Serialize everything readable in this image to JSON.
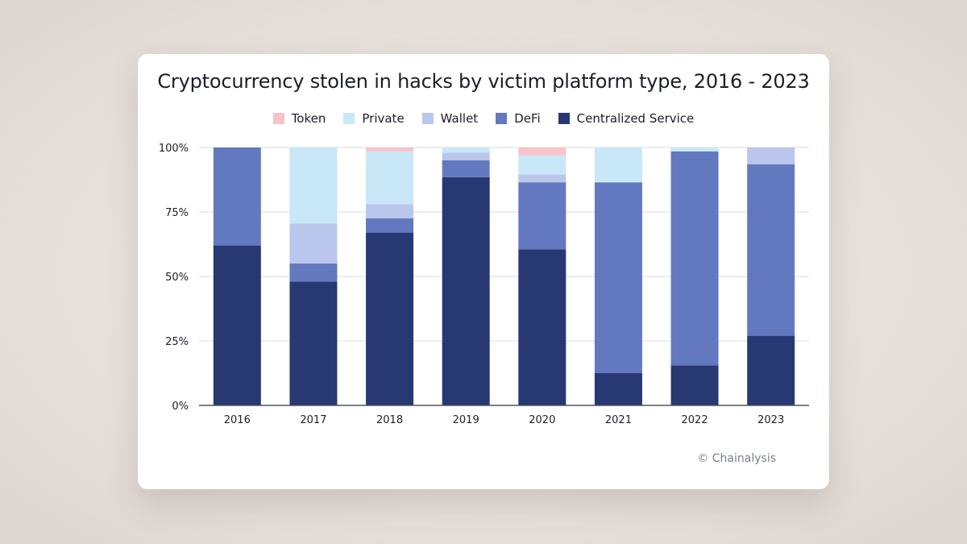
{
  "chart_data": {
    "type": "bar",
    "stacked": true,
    "title": "Cryptocurrency stolen in hacks by victim platform type, 2016 - 2023",
    "xlabel": "",
    "ylabel": "",
    "ylim": [
      0,
      100
    ],
    "yticks": [
      "0%",
      "25%",
      "50%",
      "75%",
      "100%"
    ],
    "ytick_values": [
      0,
      25,
      50,
      75,
      100
    ],
    "grid": true,
    "legend_position": "top-center",
    "categories": [
      "2016",
      "2017",
      "2018",
      "2019",
      "2020",
      "2021",
      "2022",
      "2023"
    ],
    "series": [
      {
        "name": "Centralized Service",
        "color": "#283873",
        "values": [
          62,
          48,
          67,
          88.5,
          60.5,
          12.5,
          15.5,
          27
        ]
      },
      {
        "name": "DeFi",
        "color": "#6379bf",
        "values": [
          38,
          7,
          5.5,
          6.5,
          26,
          74,
          83,
          66.5
        ]
      },
      {
        "name": "Wallet",
        "color": "#bac6ec",
        "values": [
          0,
          15.5,
          5.5,
          3,
          3,
          0,
          0,
          6.5
        ]
      },
      {
        "name": "Private",
        "color": "#c8e7f7",
        "values": [
          0,
          29.5,
          20.5,
          2,
          7.5,
          13.5,
          1.5,
          0
        ]
      },
      {
        "name": "Token",
        "color": "#f7c4c9",
        "values": [
          0,
          0,
          1.5,
          0,
          3,
          0,
          0,
          0
        ]
      }
    ],
    "legend_order": [
      "Token",
      "Private",
      "Wallet",
      "DeFi",
      "Centralized Service"
    ]
  },
  "footer": {
    "credit": "© Chainalysis"
  }
}
